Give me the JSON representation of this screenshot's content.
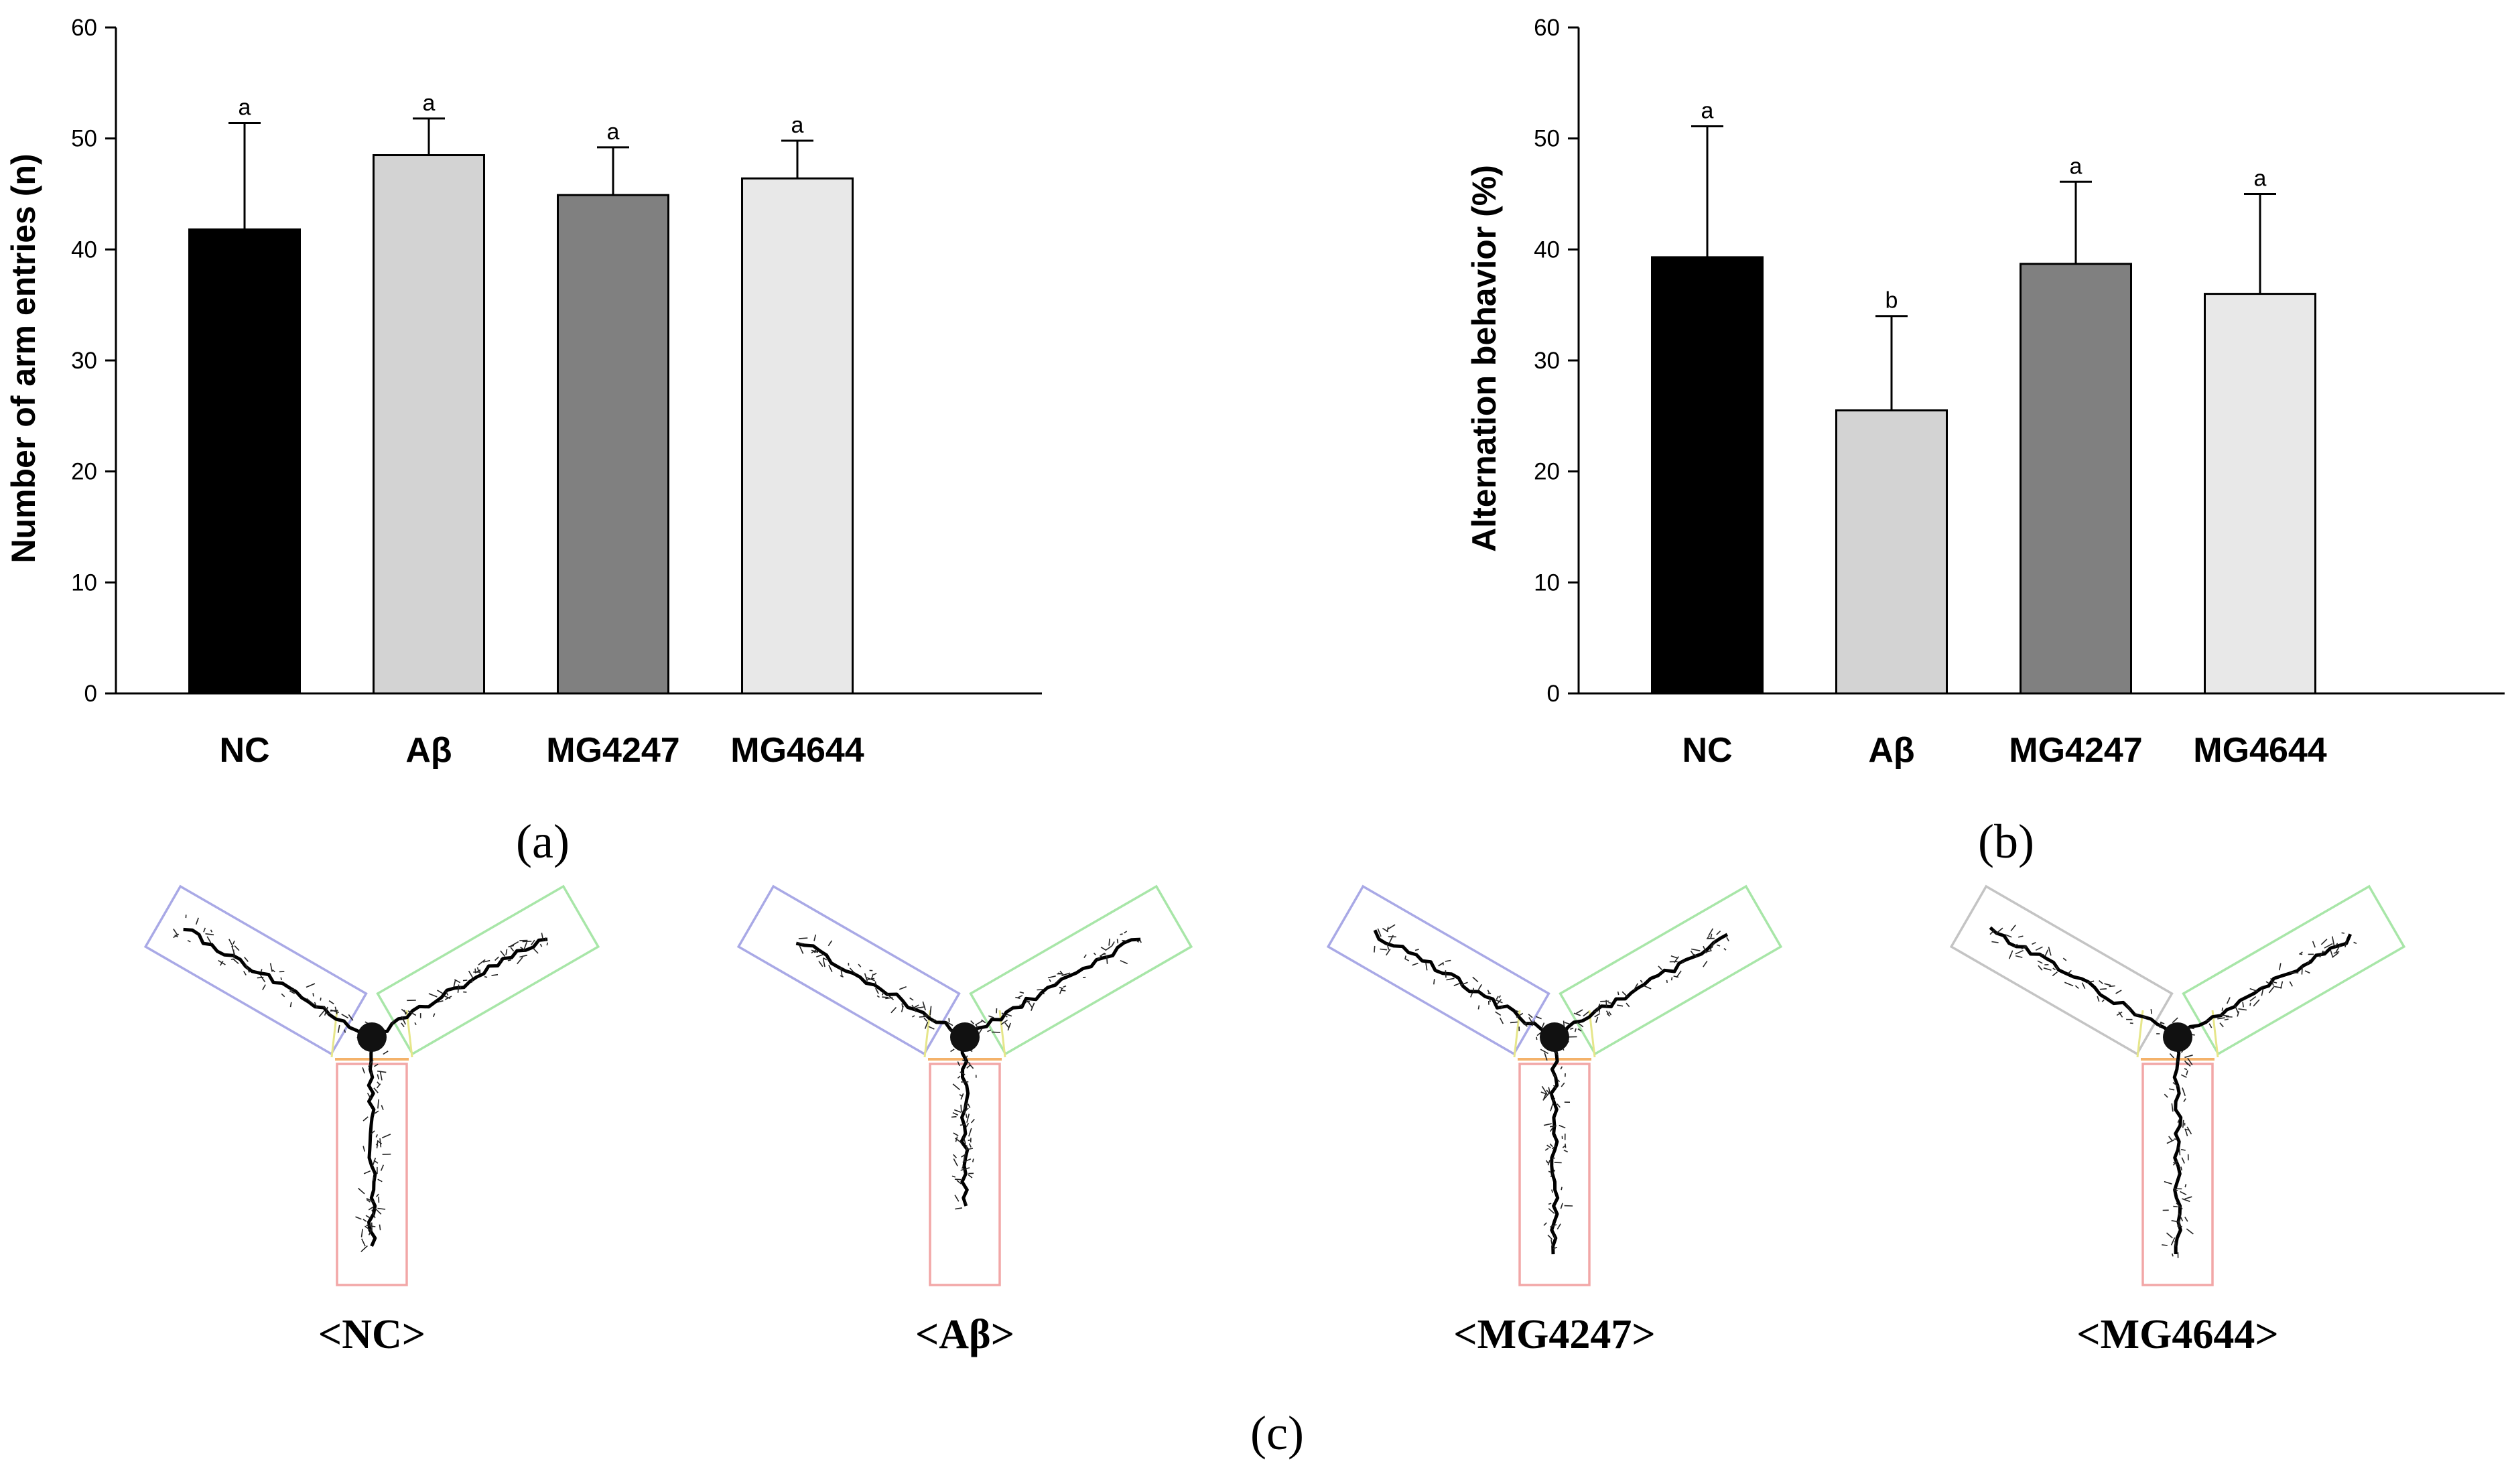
{
  "colors": {
    "NC": "#000000",
    "Aβ": "#d3d3d3",
    "MG4247": "#808080",
    "MG4644": "#e8e8e8",
    "arm_left": "#a9a9e6",
    "arm_right": "#a8e6a8",
    "arm_bottom": "#f2a7a7",
    "center_orange": "#f4b26a",
    "center_yellow": "#e6e68a",
    "arm_left_alt": "#c4c4c4"
  },
  "chart_data": [
    {
      "panel": "(a)",
      "type": "bar",
      "categories": [
        "NC",
        "Aβ",
        "MG4247",
        "MG4644"
      ],
      "values": [
        41.8,
        48.5,
        44.9,
        46.4
      ],
      "errors": [
        9.6,
        3.3,
        4.3,
        3.4
      ],
      "letters": [
        "a",
        "a",
        "a",
        "a"
      ],
      "ylabel": "Number of arm entries (n)",
      "ylim": [
        0,
        60
      ],
      "yticks": [
        "0",
        "10",
        "20",
        "30",
        "40",
        "50",
        "60"
      ],
      "grid": false
    },
    {
      "panel": "(b)",
      "type": "bar",
      "categories": [
        "NC",
        "Aβ",
        "MG4247",
        "MG4644"
      ],
      "values": [
        39.3,
        25.5,
        38.7,
        36.0
      ],
      "errors": [
        11.8,
        8.5,
        7.4,
        9.0
      ],
      "letters": [
        "a",
        "b",
        "a",
        "a"
      ],
      "ylabel": "Alternation behavior (%)",
      "ylim": [
        0,
        60
      ],
      "yticks": [
        "0",
        "10",
        "20",
        "30",
        "40",
        "50",
        "60"
      ],
      "grid": false
    }
  ],
  "maze": {
    "panel": "(c)",
    "labels": [
      "<NC>",
      "<Aβ>",
      "<MG4247>",
      "<MG4644>"
    ]
  }
}
